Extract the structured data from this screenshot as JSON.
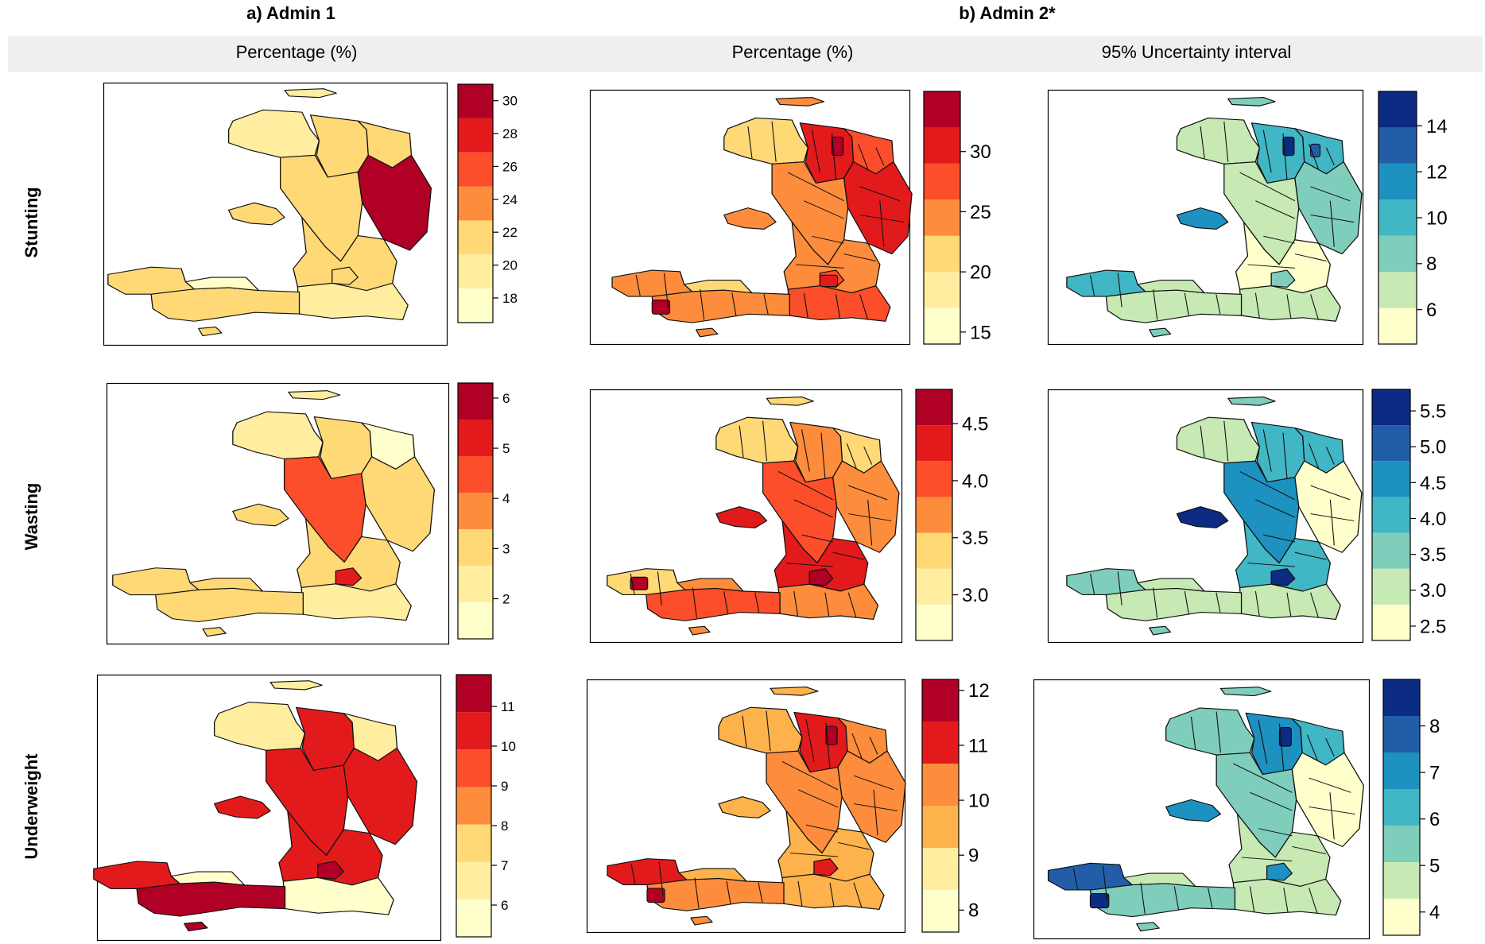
{
  "sections": {
    "admin1": "a) Admin 1",
    "admin2": "b) Admin 2*"
  },
  "columns": [
    "Percentage (%)",
    "Percentage (%)",
    "95% Uncertainty interval"
  ],
  "rows": [
    "Stunting",
    "Wasting",
    "Underweight"
  ],
  "palettes": {
    "ylorrd": [
      "#ffffcc",
      "#ffeda0",
      "#fed976",
      "#feb24c",
      "#fd8d3c",
      "#fc4e2a",
      "#e31a1c",
      "#b10026"
    ],
    "ylgnbu": [
      "#ffffcc",
      "#c7e9b4",
      "#7fcdbb",
      "#41b6c4",
      "#1d91c0",
      "#225ea8",
      "#0c2c84"
    ]
  },
  "chart_data": [
    {
      "type": "choropleth",
      "row": "Stunting",
      "column": "Admin 1 Percentage (%)",
      "legend": {
        "min": 16.5,
        "max": 31,
        "ticks": [
          18,
          20,
          22,
          24,
          26,
          28,
          30
        ]
      },
      "regions": {
        "Nord-Ouest": 20,
        "Nord": 22,
        "Nord-Est": 21,
        "Artibonite": 22,
        "Centre": 30,
        "Ouest": 22,
        "Sud-Est": 20,
        "Sud": 21,
        "Grand'Anse": 22,
        "Nippes": 18,
        "La Gonave": 22
      }
    },
    {
      "type": "choropleth",
      "row": "Stunting",
      "column": "Admin 2 Percentage (%)",
      "legend": {
        "min": 14,
        "max": 35,
        "ticks": [
          15,
          20,
          25,
          30
        ]
      }
    },
    {
      "type": "choropleth",
      "row": "Stunting",
      "column": "Admin 2 95% Uncertainty interval",
      "legend": {
        "min": 4.5,
        "max": 15.5,
        "ticks": [
          6,
          8,
          10,
          12,
          14
        ]
      }
    },
    {
      "type": "choropleth",
      "row": "Wasting",
      "column": "Admin 1 Percentage (%)",
      "legend": {
        "min": 1.2,
        "max": 6.3,
        "ticks": [
          2,
          3,
          4,
          5,
          6
        ]
      },
      "regions": {
        "Nord-Ouest": 2,
        "Nord": 3,
        "Nord-Est": 1.5,
        "Artibonite": 4.5,
        "Centre": 3,
        "Ouest": 3,
        "Port-au-Prince": 5.5,
        "Sud-Est": 2,
        "Sud": 3,
        "Grand'Anse": 3,
        "Nippes": 3,
        "La Gonave": 3
      }
    },
    {
      "type": "choropleth",
      "row": "Wasting",
      "column": "Admin 2 Percentage (%)",
      "legend": {
        "min": 2.6,
        "max": 4.8,
        "ticks": [
          3.0,
          3.5,
          4.0,
          4.5
        ]
      }
    },
    {
      "type": "choropleth",
      "row": "Wasting",
      "column": "Admin 2 95% Uncertainty interval",
      "legend": {
        "min": 2.3,
        "max": 5.8,
        "ticks": [
          2.5,
          3.0,
          3.5,
          4.0,
          4.5,
          5.0,
          5.5
        ]
      }
    },
    {
      "type": "choropleth",
      "row": "Underweight",
      "column": "Admin 1 Percentage (%)",
      "legend": {
        "min": 5.2,
        "max": 11.8,
        "ticks": [
          6,
          7,
          8,
          9,
          10,
          11
        ]
      },
      "regions": {
        "Nord-Ouest": 7,
        "Nord": 10,
        "Nord-Est": 7,
        "Artibonite": 10,
        "Centre": 10.5,
        "Ouest": 10.5,
        "Port-au-Prince": 11,
        "Sud-Est": 6,
        "Sud": 11,
        "Grand'Anse": 10.5,
        "Nippes": 6,
        "La Gonave": 10.5
      }
    },
    {
      "type": "choropleth",
      "row": "Underweight",
      "column": "Admin 2 Percentage (%)",
      "legend": {
        "min": 7.6,
        "max": 12.2,
        "ticks": [
          8,
          9,
          10,
          11,
          12
        ]
      }
    },
    {
      "type": "choropleth",
      "row": "Underweight",
      "column": "Admin 2 95% Uncertainty interval",
      "legend": {
        "min": 3.5,
        "max": 9,
        "ticks": [
          4,
          5,
          6,
          7,
          8
        ]
      }
    }
  ]
}
